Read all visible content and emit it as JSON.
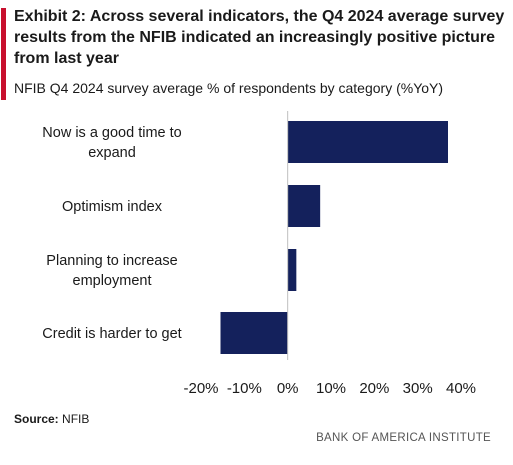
{
  "header": {
    "title": "Exhibit 2: Across several indicators, the Q4 2024 average survey results from the NFIB indicated an increasingly positive picture from last year",
    "subtitle": "NFIB Q4 2024 survey average % of respondents by category (%YoY)"
  },
  "footer": {
    "source_label": "Source:",
    "source_value": "NFIB",
    "brand": "BANK OF AMERICA INSTITUTE"
  },
  "colors": {
    "bar": "#14215c",
    "accent": "#c8102e",
    "axis": "#bfbfbf"
  },
  "chart_data": {
    "type": "bar",
    "orientation": "horizontal",
    "categories": [
      [
        "Now is a good time to",
        "expand"
      ],
      [
        "Optimism index"
      ],
      [
        "Planning to increase",
        "employment"
      ],
      [
        "Credit is harder to get"
      ]
    ],
    "values": [
      37,
      7.5,
      2,
      -15.5
    ],
    "xlim": [
      -20,
      40
    ],
    "xticks": [
      "-20%",
      "-10%",
      "0%",
      "10%",
      "20%",
      "30%",
      "40%"
    ],
    "xtick_values": [
      -20,
      -10,
      0,
      10,
      20,
      30,
      40
    ],
    "grid": false,
    "legend": "none"
  }
}
